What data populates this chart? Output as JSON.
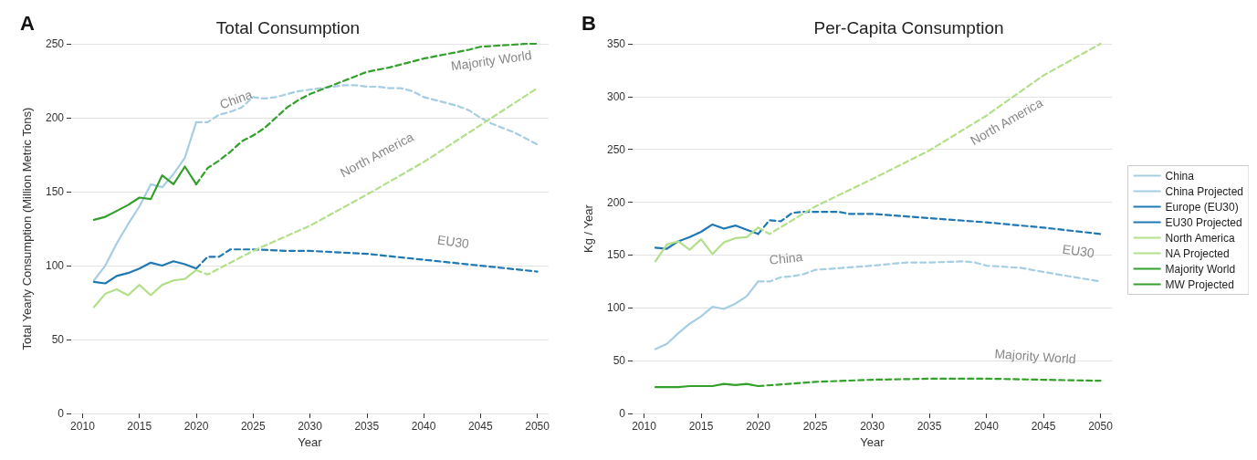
{
  "chart_data": [
    {
      "type": "line",
      "title": "Total Consumption",
      "xlabel": "Year",
      "ylabel": "Total Yearly Consumption (Million Metric Tons)",
      "xlim": [
        2009,
        2051
      ],
      "xticks": [
        2010,
        2015,
        2020,
        2025,
        2030,
        2035,
        2040,
        2045,
        2050
      ],
      "ylim": [
        0,
        250
      ],
      "yticks": [
        0,
        50,
        100,
        150,
        200,
        250
      ],
      "grid": "y",
      "legend": false,
      "marker": "none",
      "annotations": [
        "A",
        "China",
        "North America",
        "Majority World",
        "EU30"
      ],
      "series": [
        {
          "color": "#a6cee3",
          "line_style": "solid",
          "x": [
            2011,
            2012,
            2013,
            2014,
            2015,
            2016,
            2017,
            2018,
            2019,
            2020
          ],
          "values": [
            90,
            100,
            115,
            128,
            140,
            155,
            153,
            162,
            173,
            197
          ]
        },
        {
          "color": "#a6cee3",
          "line_style": "dashed",
          "x": [
            2020,
            2021,
            2022,
            2023,
            2024,
            2025,
            2026,
            2027,
            2028,
            2029,
            2030,
            2031,
            2032,
            2033,
            2034,
            2035,
            2036,
            2037,
            2038,
            2039,
            2040,
            2041,
            2042,
            2043,
            2044,
            2045,
            2046,
            2047,
            2048,
            2049,
            2050
          ],
          "values": [
            197,
            197,
            202,
            204,
            207,
            214,
            213,
            214,
            216,
            218,
            219,
            220,
            221,
            222,
            222,
            221,
            221,
            220,
            220,
            218,
            214,
            212,
            210,
            208,
            205,
            200,
            196,
            193,
            190,
            186,
            182
          ]
        },
        {
          "color": "#1f78b4",
          "line_style": "solid",
          "x": [
            2011,
            2012,
            2013,
            2014,
            2015,
            2016,
            2017,
            2018,
            2019,
            2020
          ],
          "values": [
            89,
            88,
            93,
            95,
            98,
            102,
            100,
            103,
            101,
            98
          ]
        },
        {
          "color": "#1f78b4",
          "line_style": "dashed",
          "x": [
            2020,
            2021,
            2022,
            2023,
            2024,
            2025,
            2028,
            2030,
            2035,
            2040,
            2045,
            2050
          ],
          "values": [
            98,
            106,
            106,
            111,
            111,
            111,
            110,
            110,
            108,
            104,
            100,
            96
          ]
        },
        {
          "color": "#b2df8a",
          "line_style": "solid",
          "x": [
            2011,
            2012,
            2013,
            2014,
            2015,
            2016,
            2017,
            2018,
            2019,
            2020
          ],
          "values": [
            72,
            81,
            84,
            80,
            87,
            80,
            87,
            90,
            91,
            97
          ]
        },
        {
          "color": "#b2df8a",
          "line_style": "dashed",
          "x": [
            2020,
            2021,
            2025,
            2030,
            2035,
            2040,
            2045,
            2050
          ],
          "values": [
            97,
            94,
            110,
            127,
            148,
            170,
            195,
            220
          ]
        },
        {
          "color": "#33a02c",
          "line_style": "solid",
          "x": [
            2011,
            2012,
            2013,
            2014,
            2015,
            2016,
            2017,
            2018,
            2019,
            2020
          ],
          "values": [
            131,
            133,
            137,
            141,
            146,
            145,
            161,
            155,
            167,
            155
          ]
        },
        {
          "color": "#33a02c",
          "line_style": "dashed",
          "x": [
            2020,
            2021,
            2022,
            2023,
            2024,
            2025,
            2026,
            2027,
            2028,
            2029,
            2030,
            2032,
            2033,
            2035,
            2037,
            2040,
            2042,
            2044,
            2045,
            2047,
            2049,
            2050
          ],
          "values": [
            155,
            166,
            171,
            177,
            184,
            188,
            193,
            200,
            207,
            212,
            216,
            222,
            225,
            231,
            234,
            240,
            243,
            246,
            248,
            249,
            250,
            250
          ]
        }
      ]
    },
    {
      "type": "line",
      "title": "Per-Capita Consumption",
      "xlabel": "Year",
      "ylabel": "Kg / Year",
      "xlim": [
        2009,
        2051
      ],
      "xticks": [
        2010,
        2015,
        2020,
        2025,
        2030,
        2035,
        2040,
        2045,
        2050
      ],
      "ylim": [
        0,
        350
      ],
      "yticks": [
        0,
        50,
        100,
        150,
        200,
        250,
        300,
        350
      ],
      "grid": "y",
      "legend": "right",
      "marker": "none",
      "annotations": [
        "B",
        "China",
        "North America",
        "EU30",
        "Majority World"
      ],
      "series": [
        {
          "name": "China",
          "color": "#a6cee3",
          "line_style": "solid",
          "x": [
            2011,
            2012,
            2013,
            2014,
            2015,
            2016,
            2017,
            2018,
            2019,
            2020
          ],
          "values": [
            61,
            66,
            76,
            85,
            92,
            101,
            99,
            104,
            111,
            125
          ]
        },
        {
          "name": "China Projected",
          "color": "#a6cee3",
          "line_style": "dashed",
          "x": [
            2020,
            2021,
            2022,
            2023,
            2024,
            2025,
            2030,
            2033,
            2035,
            2038,
            2039,
            2040,
            2043,
            2045,
            2050
          ],
          "values": [
            125,
            125,
            129,
            130,
            132,
            136,
            140,
            143,
            143,
            144,
            143,
            140,
            138,
            134,
            125
          ]
        },
        {
          "name": "Europe (EU30)",
          "color": "#1f78b4",
          "line_style": "solid",
          "x": [
            2011,
            2012,
            2013,
            2014,
            2015,
            2016,
            2017,
            2018,
            2019,
            2020
          ],
          "values": [
            157,
            156,
            163,
            167,
            172,
            179,
            175,
            178,
            174,
            170
          ]
        },
        {
          "name": "EU30 Projected",
          "color": "#1f78b4",
          "line_style": "dashed",
          "x": [
            2020,
            2021,
            2022,
            2023,
            2024,
            2025,
            2027,
            2028,
            2030,
            2035,
            2040,
            2045,
            2050
          ],
          "values": [
            170,
            183,
            182,
            190,
            191,
            191,
            191,
            189,
            189,
            185,
            181,
            176,
            170
          ]
        },
        {
          "name": "North America",
          "color": "#b2df8a",
          "line_style": "solid",
          "x": [
            2011,
            2012,
            2013,
            2014,
            2015,
            2016,
            2017,
            2018,
            2019,
            2020
          ],
          "values": [
            144,
            160,
            163,
            155,
            165,
            151,
            162,
            166,
            167,
            176
          ]
        },
        {
          "name": "NA Projected",
          "color": "#b2df8a",
          "line_style": "dashed",
          "x": [
            2020,
            2021,
            2025,
            2030,
            2035,
            2040,
            2045,
            2050
          ],
          "values": [
            176,
            170,
            196,
            222,
            249,
            282,
            320,
            350
          ]
        },
        {
          "name": "Majority World",
          "color": "#33a02c",
          "line_style": "solid",
          "x": [
            2011,
            2012,
            2013,
            2014,
            2015,
            2016,
            2017,
            2018,
            2019,
            2020
          ],
          "values": [
            25,
            25,
            25,
            26,
            26,
            26,
            28,
            27,
            28,
            26
          ]
        },
        {
          "name": "MW Projected",
          "color": "#33a02c",
          "line_style": "dashed",
          "x": [
            2020,
            2025,
            2030,
            2035,
            2040,
            2045,
            2050
          ],
          "values": [
            26,
            30,
            32,
            33,
            33,
            32,
            31
          ]
        }
      ]
    }
  ]
}
